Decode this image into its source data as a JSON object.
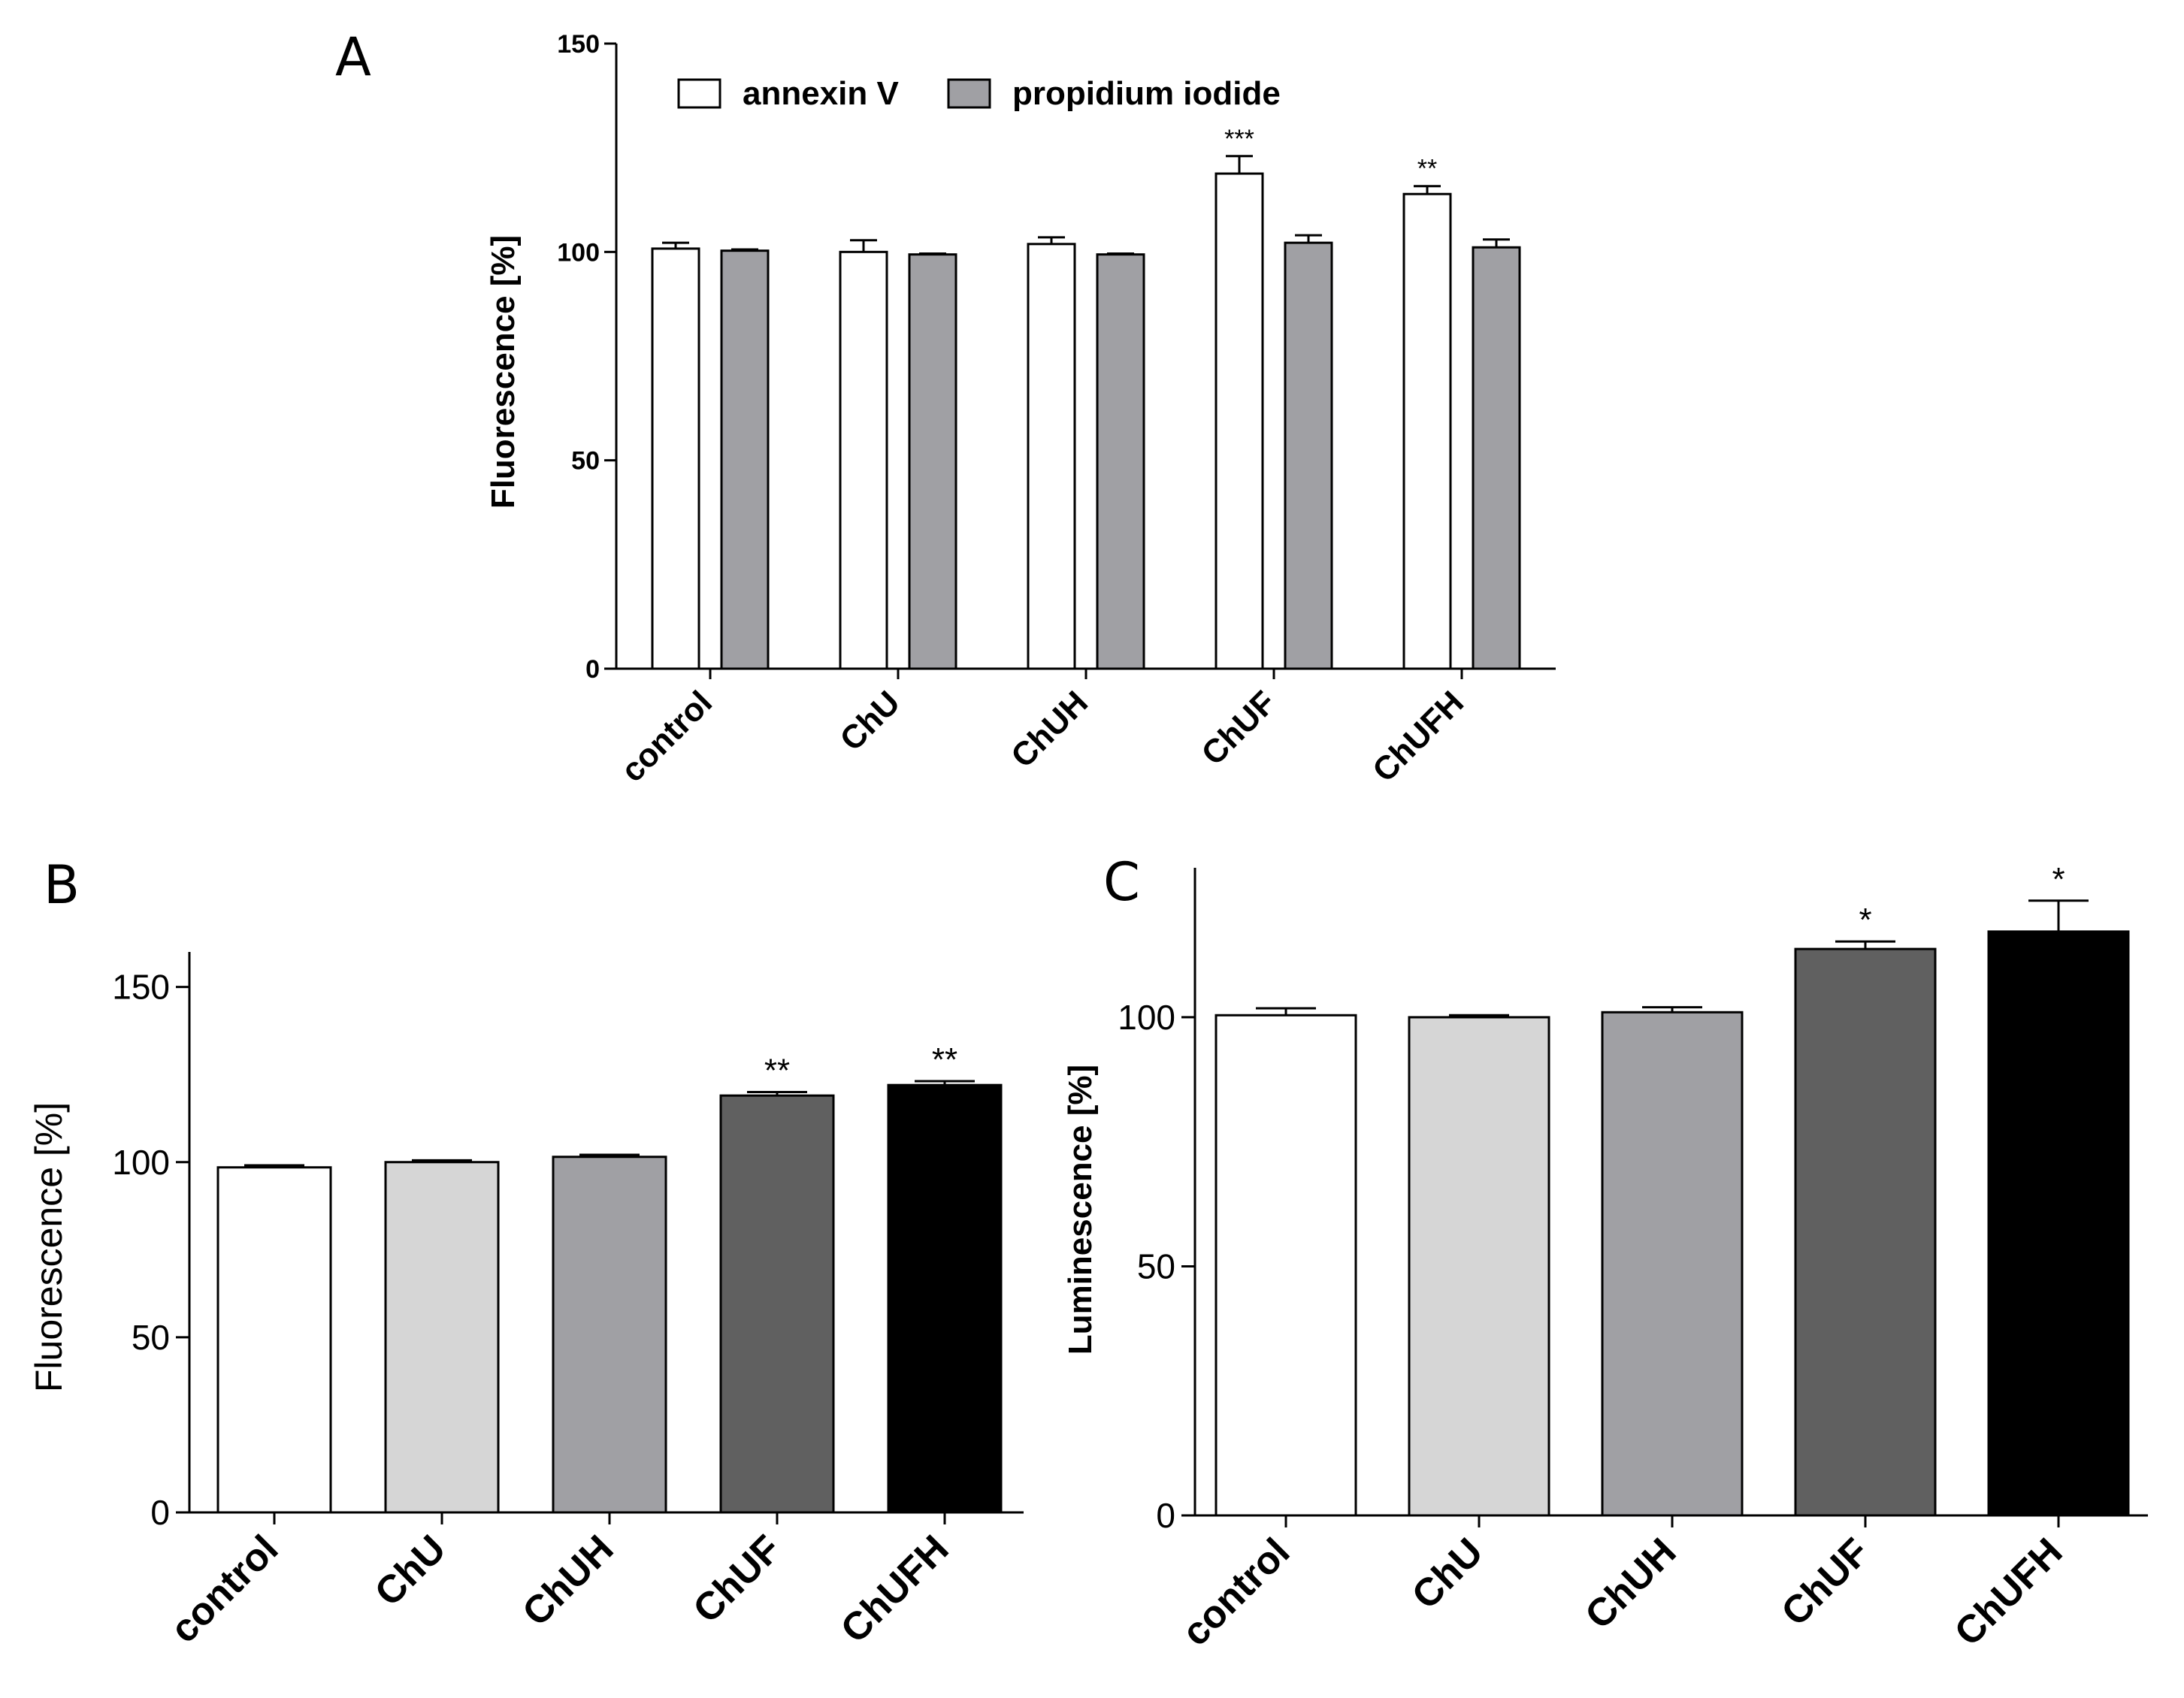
{
  "figure": {
    "panels": [
      "A",
      "B",
      "C"
    ]
  },
  "chart_data": [
    {
      "panel": "A",
      "type": "bar",
      "title": "",
      "xlabel": "",
      "ylabel": "Fluorescence [%]",
      "ylim": [
        0,
        150
      ],
      "yticks": [
        0,
        50,
        100,
        150
      ],
      "categories": [
        "control",
        "ChU",
        "ChUH",
        "ChUF",
        "ChUFH"
      ],
      "legend": "top",
      "series": [
        {
          "name": "annexin V",
          "color": "#ffffff",
          "values": [
            100.8,
            100.0,
            101.9,
            118.8,
            113.9
          ],
          "errors": [
            1.4,
            2.8,
            1.6,
            4.2,
            1.9
          ],
          "significance": [
            "",
            "",
            "",
            "***",
            "**"
          ]
        },
        {
          "name": "propidium iodide",
          "color": "#a0a0a4",
          "values": [
            100.3,
            99.4,
            99.4,
            102.2,
            101.1
          ],
          "errors": [
            0.3,
            0.2,
            0.2,
            1.8,
            1.9
          ],
          "significance": [
            "",
            "",
            "",
            "",
            ""
          ]
        }
      ]
    },
    {
      "panel": "B",
      "type": "bar",
      "title": "",
      "xlabel": "",
      "ylabel": "Fluorescence [%]",
      "ylim": [
        0,
        160
      ],
      "yticks": [
        0,
        50,
        100,
        150
      ],
      "categories": [
        "control",
        "ChU",
        "ChUH",
        "ChUF",
        "ChUFH"
      ],
      "values": [
        98.5,
        100.0,
        101.5,
        119.0,
        122.0
      ],
      "errors": [
        0.6,
        0.5,
        0.6,
        1.0,
        1.1
      ],
      "colors": [
        "#ffffff",
        "#d6d6d6",
        "#a0a0a4",
        "#606060",
        "#000000"
      ],
      "significance": [
        "",
        "",
        "",
        "**",
        "**"
      ]
    },
    {
      "panel": "C",
      "type": "bar",
      "title": "",
      "xlabel": "",
      "ylabel": "Luminescence [%]",
      "ylim": [
        0,
        130
      ],
      "yticks": [
        0,
        50,
        100
      ],
      "categories": [
        "control",
        "ChU",
        "ChUH",
        "ChUF",
        "ChUFH"
      ],
      "values": [
        100.4,
        100.0,
        101.0,
        113.7,
        117.2
      ],
      "errors": [
        1.4,
        0.4,
        1.0,
        1.5,
        6.2
      ],
      "colors": [
        "#ffffff",
        "#d6d6d6",
        "#a0a0a4",
        "#606060",
        "#000000"
      ],
      "significance": [
        "",
        "",
        "",
        "*",
        "*"
      ]
    }
  ]
}
